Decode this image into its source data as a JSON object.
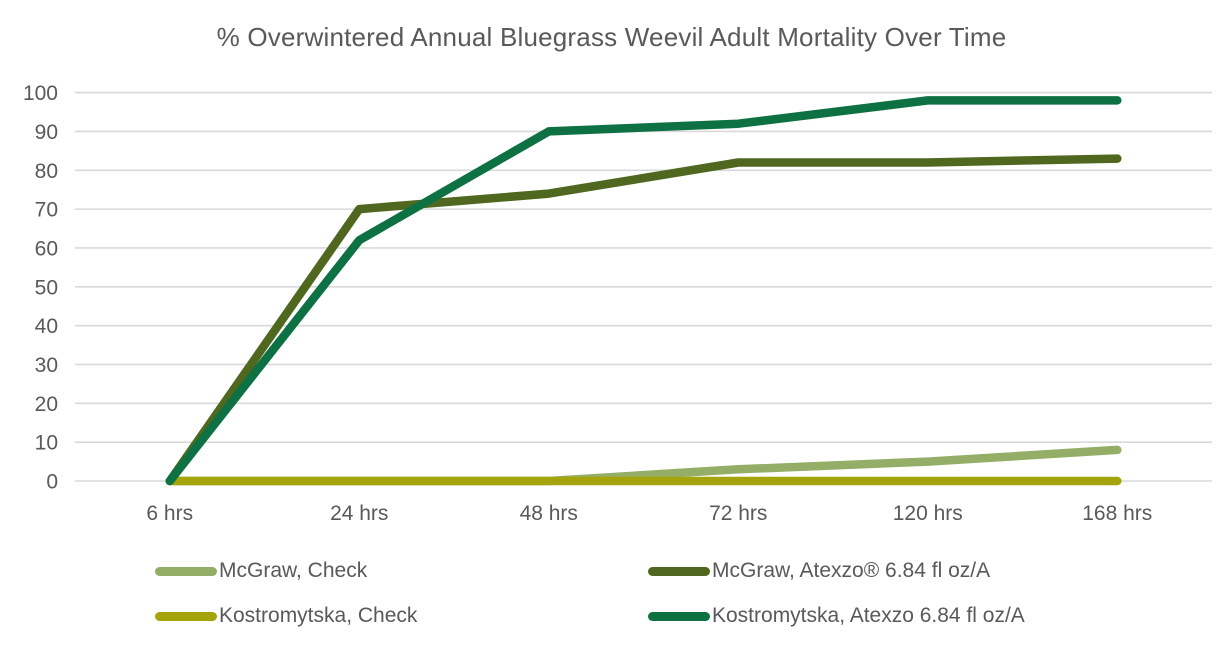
{
  "title": "% Overwintered Annual Bluegrass Weevil Adult Mortality Over Time",
  "colors": {
    "text_gray": "#595959",
    "gridline": "#D9D9D9",
    "background": "#FFFFFF"
  },
  "chart_data": {
    "type": "line",
    "title": "% Overwintered Annual Bluegrass Weevil Adult Mortality Over Time",
    "xlabel": "",
    "ylabel": "",
    "categories": [
      "6 hrs",
      "24 hrs",
      "48 hrs",
      "72 hrs",
      "120 hrs",
      "168 hrs"
    ],
    "series": [
      {
        "name": "McGraw, Check",
        "color": "#94AE68",
        "values": [
          0,
          0,
          0,
          3,
          5,
          8
        ]
      },
      {
        "name": "McGraw, Atexzo® 6.84 fl oz/A",
        "color": "#4F671E",
        "values": [
          0,
          70,
          74,
          82,
          82,
          83
        ]
      },
      {
        "name": "Kostromytska, Check",
        "color": "#A6A40D",
        "values": [
          0,
          0,
          0,
          0,
          0,
          0
        ]
      },
      {
        "name": "Kostromytska, Atexzo 6.84 fl oz/A",
        "color": "#0E7144",
        "values": [
          0,
          62,
          90,
          92,
          98,
          98
        ]
      }
    ],
    "ylim": [
      0,
      100
    ],
    "ytick_step": 10,
    "yticks": [
      "0",
      "10",
      "20",
      "30",
      "40",
      "50",
      "60",
      "70",
      "80",
      "90",
      "100"
    ],
    "grid": "horizontal",
    "legend_position": "bottom, two columns"
  }
}
